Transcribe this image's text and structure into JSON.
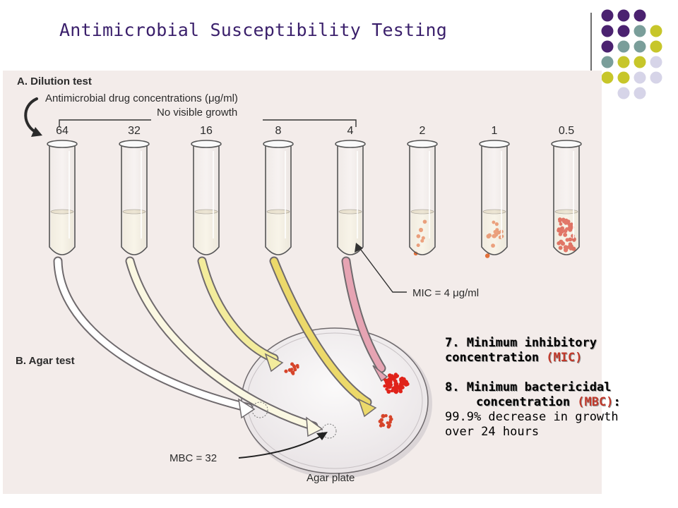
{
  "slide": {
    "title": "Antimicrobial Susceptibility Testing",
    "colors": {
      "title": "#3a1f6b",
      "dot_purple": "#4b2270",
      "dot_teal": "#7a9e9a",
      "dot_olive": "#c7c62a",
      "dot_lavender": "#d6d4e8",
      "highlight": "#c0392b"
    }
  },
  "figure": {
    "section_a_label": "A. Dilution test",
    "concentration_label": "Antimicrobial drug concentrations (μg/ml)",
    "no_growth_label": "No visible growth",
    "tubes": [
      {
        "concentration": "64",
        "colonies": 0
      },
      {
        "concentration": "32",
        "colonies": 0
      },
      {
        "concentration": "16",
        "colonies": 0
      },
      {
        "concentration": "8",
        "colonies": 0
      },
      {
        "concentration": "4",
        "colonies": 0
      },
      {
        "concentration": "2",
        "colonies": 7
      },
      {
        "concentration": "1",
        "colonies": 16
      },
      {
        "concentration": "0.5",
        "colonies": 45
      }
    ],
    "mic_label": "MIC = 4 μg/ml",
    "section_b_label": "B. Agar test",
    "mbc_label": "MBC = 32",
    "plate_label": "Agar plate"
  },
  "notes": {
    "item7_line1": "7. Minimum inhibitory",
    "item7_line2_prefix": "concentration ",
    "item7_line2_abbr": "(MIC)",
    "item8_line1": "8. Minimum bactericidal",
    "item8_line2_prefix": "concentration ",
    "item8_line2_abbr": "(MBC)",
    "item8_line2_suffix": ":",
    "item8_line3": "99.9% decrease in growth",
    "item8_line4": "over 24 hours"
  }
}
